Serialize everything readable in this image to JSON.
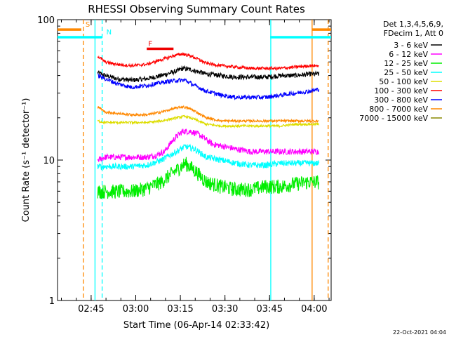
{
  "chart_data": {
    "type": "line",
    "title": "RHESSI Observing Summary Count Rates",
    "xlabel": "Start Time (06-Apr-14 02:33:42)",
    "ylabel": "Count Rate (s⁻¹ detector⁻¹)",
    "yscale": "log",
    "ylim": [
      1,
      100
    ],
    "xlim_minutes": [
      0,
      92
    ],
    "x_ticks": [
      {
        "min": 11.3,
        "label": "02:45"
      },
      {
        "min": 26.3,
        "label": "03:00"
      },
      {
        "min": 41.3,
        "label": "03:15"
      },
      {
        "min": 56.3,
        "label": "03:30"
      },
      {
        "min": 71.3,
        "label": "03:45"
      },
      {
        "min": 86.3,
        "label": "04:00"
      }
    ],
    "y_ticks": [
      {
        "value": 1,
        "label": "1"
      },
      {
        "value": 10,
        "label": "10"
      },
      {
        "value": 100,
        "label": "100"
      }
    ],
    "legend": {
      "placement": "right",
      "header": [
        "Det 1,3,4,5,6,9,",
        "FDecim 1, Att 0"
      ]
    },
    "series": [
      {
        "name": "3 - 6 keV",
        "color": "#000000",
        "x": [
          13.5,
          16,
          20,
          25,
          30,
          35,
          40,
          42,
          45,
          50,
          55,
          60,
          65,
          70,
          75,
          80,
          85,
          88
        ],
        "y": [
          42,
          40,
          38,
          37,
          38,
          40,
          43,
          45,
          44,
          41,
          40,
          39,
          39,
          39,
          40,
          40,
          41,
          41
        ],
        "noise": 0.04
      },
      {
        "name": "6 - 12 keV",
        "color": "#ff00ff",
        "x": [
          13.5,
          16,
          20,
          25,
          30,
          33,
          36,
          39,
          42,
          45,
          48,
          52,
          56,
          60,
          65,
          70,
          75,
          80,
          85,
          88
        ],
        "y": [
          10,
          10.5,
          10.5,
          10.5,
          10.5,
          10.8,
          11.5,
          14,
          16,
          16,
          15,
          13,
          12.5,
          12,
          11.5,
          11.5,
          11.5,
          11.5,
          11.5,
          11.5
        ],
        "noise": 0.05
      },
      {
        "name": "12 - 25 keV",
        "color": "#00ee00",
        "x": [
          13.5,
          16,
          20,
          25,
          30,
          35,
          40,
          43,
          46,
          50,
          55,
          60,
          65,
          70,
          75,
          80,
          85,
          88
        ],
        "y": [
          6,
          6,
          6,
          6,
          6.3,
          7,
          8.5,
          9.5,
          8.5,
          7,
          6.5,
          6.2,
          6.2,
          6.5,
          6.5,
          6.8,
          7,
          7
        ],
        "noise": 0.12
      },
      {
        "name": "25 - 50 keV",
        "color": "#00ffff",
        "x": [
          13.5,
          16,
          20,
          25,
          30,
          35,
          40,
          43,
          46,
          50,
          55,
          60,
          65,
          70,
          75,
          80,
          85,
          88
        ],
        "y": [
          9,
          9,
          9,
          9,
          9.2,
          10,
          11.5,
          12.5,
          12,
          10.5,
          10,
          9.5,
          9.2,
          9.2,
          9.5,
          9.5,
          9.5,
          9.5
        ],
        "noise": 0.05
      },
      {
        "name": "50 - 100 keV",
        "color": "#dddd00",
        "x": [
          13.5,
          16,
          20,
          25,
          30,
          35,
          40,
          43,
          46,
          50,
          55,
          60,
          65,
          70,
          75,
          80,
          85,
          88
        ],
        "y": [
          19,
          18.5,
          18.5,
          18.5,
          18.5,
          19,
          20,
          20.5,
          19.5,
          18,
          17.5,
          17.5,
          17.5,
          17.5,
          17.5,
          18,
          18,
          18
        ],
        "noise": 0.02
      },
      {
        "name": "100 - 300 keV",
        "color": "#ff0000",
        "x": [
          13.5,
          16,
          20,
          25,
          30,
          35,
          40,
          42,
          45,
          50,
          55,
          60,
          65,
          70,
          75,
          80,
          85,
          88
        ],
        "y": [
          55,
          50,
          48,
          47,
          48,
          52,
          56,
          57,
          55,
          49,
          47,
          46,
          45,
          45,
          45,
          46,
          47,
          47
        ],
        "noise": 0.025
      },
      {
        "name": "300 - 800 keV",
        "color": "#0000ff",
        "x": [
          13.5,
          16,
          20,
          25,
          30,
          33,
          36,
          40,
          43,
          46,
          50,
          55,
          60,
          65,
          70,
          75,
          80,
          85,
          88
        ],
        "y": [
          40,
          38,
          35,
          33,
          34,
          35,
          36,
          37,
          37,
          34,
          31,
          29,
          28,
          28,
          28,
          29,
          30,
          31,
          32
        ],
        "noise": 0.035
      },
      {
        "name": "800 - 7000 keV",
        "color": "#ff8800",
        "x": [
          13.5,
          16,
          20,
          25,
          30,
          35,
          40,
          42,
          45,
          50,
          55,
          60,
          65,
          70,
          75,
          80,
          85,
          88
        ],
        "y": [
          24,
          22,
          21.5,
          21,
          21,
          22,
          23.5,
          24,
          23,
          20,
          19,
          19,
          19,
          19,
          19,
          19,
          19,
          19
        ],
        "noise": 0.02
      },
      {
        "name": "7000 - 15000 keV",
        "color": "#888800",
        "x": [],
        "y": [],
        "noise": 0
      }
    ],
    "flag_bars": [
      {
        "label": "S",
        "color": "#ff8800",
        "x_start": 0,
        "x_end": 8.0,
        "y": 85
      },
      {
        "label": "N",
        "color": "#00ffff",
        "x_start": 0,
        "x_end": 15.0,
        "y": 75
      },
      {
        "label": "F",
        "color": "#ee0000",
        "x_start": 30.0,
        "x_end": 39.0,
        "y": 62
      },
      {
        "label": "",
        "color": "#00ffff",
        "x_start": 71.5,
        "x_end": 92,
        "y": 75
      },
      {
        "label": "",
        "color": "#ff8800",
        "x_start": 85.5,
        "x_end": 92,
        "y": 85
      }
    ],
    "markers": [
      {
        "type": "dashed",
        "color": "#ff8800",
        "x": 8.7
      },
      {
        "type": "dashed",
        "color": "#00ffff",
        "x": 15.0
      },
      {
        "type": "dashed",
        "color": "#ff8800",
        "x": 91.0
      },
      {
        "type": "solid",
        "color": "#00ffff",
        "x": 12.6
      },
      {
        "type": "solid",
        "color": "#00ffff",
        "x": 71.7
      },
      {
        "type": "solid",
        "color": "#ff8800",
        "x": 85.6
      }
    ],
    "footer_date": "22-Oct-2021 04:04"
  }
}
